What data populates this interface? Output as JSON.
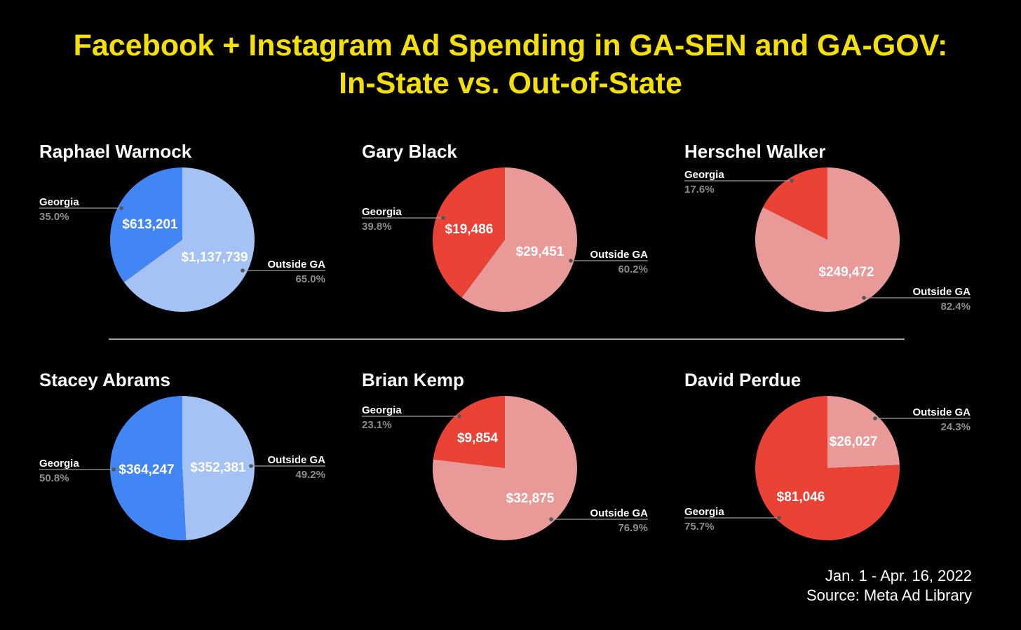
{
  "title": {
    "line1": "Facebook + Instagram Ad Spending in GA-SEN and GA-GOV:",
    "line2": "In-State vs. Out-of-State"
  },
  "footer": {
    "date_range": "Jan. 1 - Apr. 16, 2022",
    "source": "Source: Meta Ad Library"
  },
  "colors": {
    "title": "#f5e000",
    "blue_dark": "#4285f4",
    "blue_light": "#a4c2f4",
    "red_dark": "#ea4335",
    "red_light": "#ea9999",
    "pct_text": "#8c8c8c",
    "leader": "#9e9e9e",
    "divider": "#d9d9d9"
  },
  "chart_data": [
    {
      "type": "pie",
      "title": "Raphael Warnock",
      "palette": "blue",
      "slices": [
        {
          "name": "Georgia",
          "value": 613201,
          "value_label": "$613,201",
          "percent": "35.0%"
        },
        {
          "name": "Outside GA",
          "value": 1137739,
          "value_label": "$1,137,739",
          "percent": "65.0%"
        }
      ]
    },
    {
      "type": "pie",
      "title": "Gary Black",
      "palette": "red",
      "slices": [
        {
          "name": "Georgia",
          "value": 19486,
          "value_label": "$19,486",
          "percent": "39.8%"
        },
        {
          "name": "Outside GA",
          "value": 29451,
          "value_label": "$29,451",
          "percent": "60.2%"
        }
      ]
    },
    {
      "type": "pie",
      "title": "Herschel Walker",
      "palette": "red",
      "slices": [
        {
          "name": "Georgia",
          "value": 53287,
          "value_label": "",
          "percent": "17.6%"
        },
        {
          "name": "Outside GA",
          "value": 249472,
          "value_label": "$249,472",
          "percent": "82.4%"
        }
      ]
    },
    {
      "type": "pie",
      "title": "Stacey Abrams",
      "palette": "blue",
      "slices": [
        {
          "name": "Georgia",
          "value": 364247,
          "value_label": "$364,247",
          "percent": "50.8%"
        },
        {
          "name": "Outside GA",
          "value": 352381,
          "value_label": "$352,381",
          "percent": "49.2%"
        }
      ]
    },
    {
      "type": "pie",
      "title": "Brian Kemp",
      "palette": "red",
      "slices": [
        {
          "name": "Georgia",
          "value": 9854,
          "value_label": "$9,854",
          "percent": "23.1%"
        },
        {
          "name": "Outside GA",
          "value": 32875,
          "value_label": "$32,875",
          "percent": "76.9%"
        }
      ]
    },
    {
      "type": "pie",
      "title": "David Perdue",
      "palette": "red",
      "slices": [
        {
          "name": "Outside GA",
          "value": 26027,
          "value_label": "$26,027",
          "percent": "24.3%"
        },
        {
          "name": "Georgia",
          "value": 81046,
          "value_label": "$81,046",
          "percent": "75.7%"
        }
      ]
    }
  ]
}
